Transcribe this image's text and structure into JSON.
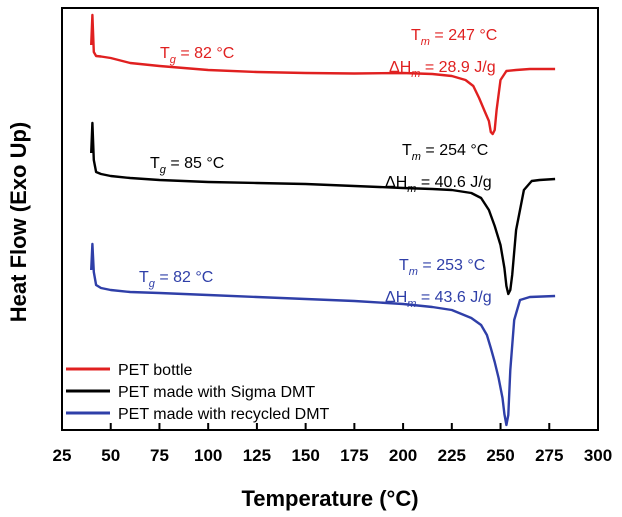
{
  "chart_data": {
    "type": "line",
    "xlabel": "Temperature (°C)",
    "ylabel": "Heat Flow (Exo Up)",
    "xlim": [
      25,
      300
    ],
    "xticks": [
      25,
      50,
      75,
      100,
      125,
      150,
      175,
      200,
      225,
      250,
      275,
      300
    ],
    "y_ticks_shown": false,
    "grid": false,
    "legend_position": "bottom-left",
    "series": [
      {
        "name": "PET bottle",
        "color": "#e02020",
        "points": [
          [
            40,
            45
          ],
          [
            40.6,
            15
          ],
          [
            41.3,
            52
          ],
          [
            42.5,
            56
          ],
          [
            45,
            56.5
          ],
          [
            50,
            58
          ],
          [
            60,
            63
          ],
          [
            75,
            66
          ],
          [
            100,
            70
          ],
          [
            125,
            72
          ],
          [
            150,
            73
          ],
          [
            175,
            73.5
          ],
          [
            200,
            73
          ],
          [
            215,
            74
          ],
          [
            225,
            76
          ],
          [
            232,
            80
          ],
          [
            236,
            86
          ],
          [
            239,
            98
          ],
          [
            242,
            112
          ],
          [
            244,
            121
          ],
          [
            245,
            132
          ],
          [
            246,
            134
          ],
          [
            247,
            130
          ],
          [
            248,
            110
          ],
          [
            250,
            80
          ],
          [
            253,
            71
          ],
          [
            258,
            70
          ],
          [
            265,
            69
          ],
          [
            278,
            69
          ]
        ],
        "tg_label": {
          "prefix": "T",
          "sub": "g",
          "text": " = 82 °C"
        },
        "tm_label": {
          "prefix": "T",
          "sub": "m",
          "text": " = 247 °C"
        },
        "dh_label": {
          "prefix": "ΔH",
          "sub": "m",
          "text": " = 28.9 J/g"
        }
      },
      {
        "name": "PET made with Sigma DMT",
        "color": "#000000",
        "points": [
          [
            40,
            153
          ],
          [
            40.6,
            123
          ],
          [
            41.3,
            160
          ],
          [
            42.5,
            172
          ],
          [
            45,
            174
          ],
          [
            50,
            176
          ],
          [
            60,
            178
          ],
          [
            75,
            180
          ],
          [
            100,
            182
          ],
          [
            125,
            183
          ],
          [
            150,
            184
          ],
          [
            175,
            186
          ],
          [
            200,
            188
          ],
          [
            215,
            189
          ],
          [
            225,
            190
          ],
          [
            235,
            193
          ],
          [
            240,
            198
          ],
          [
            244,
            210
          ],
          [
            247,
            226
          ],
          [
            250,
            245
          ],
          [
            252,
            268
          ],
          [
            253,
            286
          ],
          [
            254,
            294
          ],
          [
            255,
            290
          ],
          [
            256,
            275
          ],
          [
            258,
            230
          ],
          [
            262,
            190
          ],
          [
            266,
            181
          ],
          [
            270,
            180
          ],
          [
            278,
            179
          ]
        ],
        "tg_label": {
          "prefix": "T",
          "sub": "g",
          "text": " = 85 °C"
        },
        "tm_label": {
          "prefix": "T",
          "sub": "m",
          "text": " = 254 °C"
        },
        "dh_label": {
          "prefix": "ΔH",
          "sub": "m",
          "text": " = 40.6 J/g"
        }
      },
      {
        "name": "PET made with recycled DMT",
        "color": "#2f3fa8",
        "points": [
          [
            40,
            270
          ],
          [
            40.6,
            244
          ],
          [
            41.3,
            272
          ],
          [
            42.5,
            285
          ],
          [
            45,
            288
          ],
          [
            50,
            290
          ],
          [
            60,
            292
          ],
          [
            75,
            293
          ],
          [
            100,
            295
          ],
          [
            125,
            297
          ],
          [
            150,
            299
          ],
          [
            175,
            301
          ],
          [
            200,
            304
          ],
          [
            215,
            307
          ],
          [
            225,
            310
          ],
          [
            235,
            318
          ],
          [
            240,
            325
          ],
          [
            243,
            335
          ],
          [
            245,
            348
          ],
          [
            247,
            362
          ],
          [
            249,
            378
          ],
          [
            251,
            398
          ],
          [
            252,
            414
          ],
          [
            253,
            425
          ],
          [
            254,
            415
          ],
          [
            255,
            370
          ],
          [
            257,
            320
          ],
          [
            260,
            300
          ],
          [
            265,
            297
          ],
          [
            278,
            296
          ]
        ],
        "tg_label": {
          "prefix": "T",
          "sub": "g",
          "text": " = 82 °C"
        },
        "tm_label": {
          "prefix": "T",
          "sub": "m",
          "text": " = 253 °C"
        },
        "dh_label": {
          "prefix": "ΔH",
          "sub": "m",
          "text": " = 43.6 J/g"
        }
      }
    ],
    "y_units_note": "relative heat flow, no numeric y scale shown"
  }
}
